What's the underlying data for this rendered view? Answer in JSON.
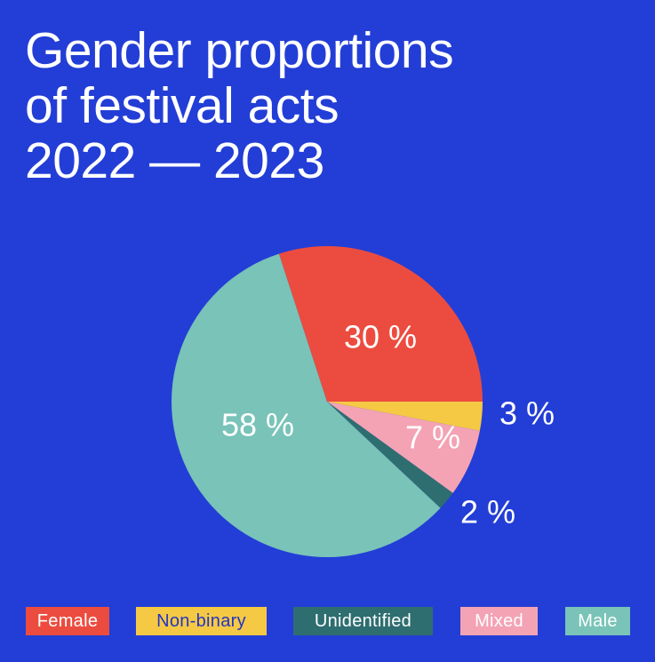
{
  "colors": {
    "background": "#233ed6",
    "title_text": "#ffffff",
    "label_text": "#ffffff"
  },
  "title": {
    "line1": "Gender proportions",
    "line2": "of festival acts",
    "line3": "2022 — 2023"
  },
  "chart_data": {
    "type": "pie",
    "title": "Gender proportions of festival acts 2022 — 2023",
    "start_angle_deg": 0,
    "direction": "clockwise-from-east",
    "slices": [
      {
        "name": "Non-binary",
        "value": 3,
        "label": "3 %",
        "color": "#f5c944",
        "text_color": "#2335c4",
        "label_placement": "outside"
      },
      {
        "name": "Mixed",
        "value": 7,
        "label": "7 %",
        "color": "#f4a3b4",
        "text_color": "#ffffff",
        "label_placement": "inside"
      },
      {
        "name": "Unidentified",
        "value": 2,
        "label": "2 %",
        "color": "#2e6e70",
        "text_color": "#ffffff",
        "label_placement": "outside"
      },
      {
        "name": "Male",
        "value": 58,
        "label": "58 %",
        "color": "#79c3b8",
        "text_color": "#ffffff",
        "label_placement": "inside"
      },
      {
        "name": "Female",
        "value": 30,
        "label": "30 %",
        "color": "#ec4c3f",
        "text_color": "#ffffff",
        "label_placement": "inside"
      }
    ],
    "legend": {
      "placement": "bottom",
      "order": [
        "Female",
        "Non-binary",
        "Unidentified",
        "Mixed",
        "Male"
      ]
    }
  }
}
